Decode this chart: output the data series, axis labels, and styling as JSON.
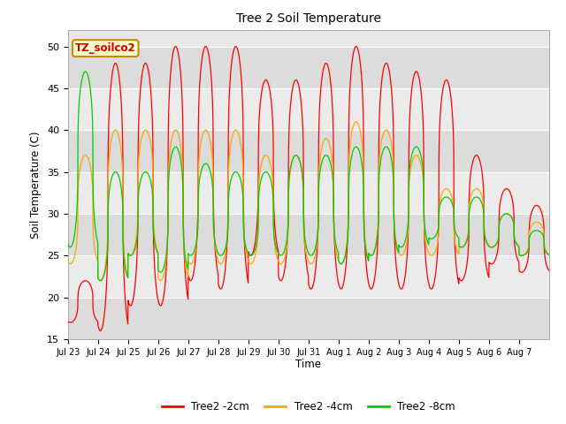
{
  "title": "Tree 2 Soil Temperature",
  "xlabel": "Time",
  "ylabel": "Soil Temperature (C)",
  "ylim": [
    15,
    52
  ],
  "yticks": [
    15,
    20,
    25,
    30,
    35,
    40,
    45,
    50
  ],
  "line_colors": {
    "2cm": "#FF0000",
    "4cm": "#FFA500",
    "8cm": "#00CC00"
  },
  "legend_labels": [
    "Tree2 -2cm",
    "Tree2 -4cm",
    "Tree2 -8cm"
  ],
  "annotation_text": "TZ_soilco2",
  "annotation_bg": "#FFFFCC",
  "annotation_border": "#CC8800",
  "plot_bg_light": "#E8E8E8",
  "plot_bg_dark": "#D0D0D0",
  "xtick_labels": [
    "Jul 23",
    "Jul 24",
    "Jul 25",
    "Jul 26",
    "Jul 27",
    "Jul 28",
    "Jul 29",
    "Jul 30",
    "Jul 31",
    "Aug 1",
    "Aug 2",
    "Aug 3",
    "Aug 4",
    "Aug 5",
    "Aug 6",
    "Aug 7"
  ],
  "n_days": 16,
  "points_per_day": 144,
  "day_peaks_2cm": [
    22,
    48,
    48,
    50,
    50,
    50,
    46,
    46,
    48,
    50,
    48,
    47,
    46,
    37,
    33,
    31
  ],
  "day_troughs_2cm": [
    17,
    16,
    19,
    19,
    22,
    21,
    25,
    22,
    21,
    21,
    21,
    21,
    21,
    22,
    24,
    23
  ],
  "day_peaks_4cm": [
    37,
    40,
    40,
    40,
    40,
    40,
    37,
    37,
    39,
    41,
    40,
    37,
    33,
    33,
    30,
    29
  ],
  "day_troughs_4cm": [
    24,
    22,
    25,
    22,
    24,
    24,
    24,
    24,
    24,
    24,
    25,
    25,
    25,
    26,
    26,
    25
  ],
  "day_peaks_8cm": [
    47,
    35,
    35,
    38,
    36,
    35,
    35,
    37,
    37,
    38,
    38,
    38,
    32,
    32,
    30,
    28
  ],
  "day_troughs_8cm": [
    26,
    22,
    25,
    23,
    25,
    25,
    25,
    25,
    25,
    24,
    25,
    26,
    27,
    26,
    26,
    25
  ],
  "peak_phase": 0.58,
  "rise_sharpness": 3.0
}
